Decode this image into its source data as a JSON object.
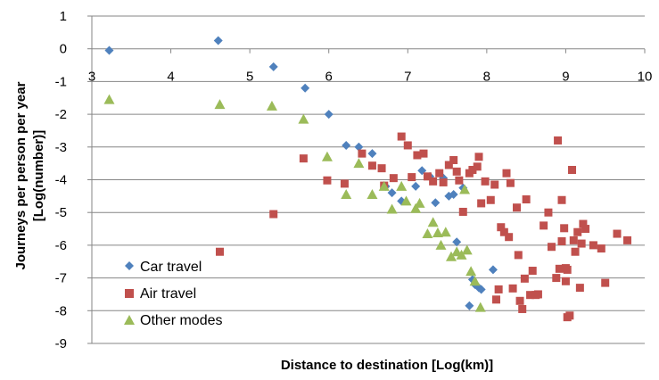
{
  "chart_data": {
    "type": "scatter",
    "title": "",
    "xlabel": "Distance to destination [Log(km)]",
    "ylabel_line1": "Journeys per person per year",
    "ylabel_line2": "[Log(number)]",
    "xlim": [
      3,
      10
    ],
    "ylim": [
      -9,
      1
    ],
    "x_ticks": [
      3,
      4,
      5,
      6,
      7,
      8,
      9,
      10
    ],
    "y_ticks": [
      1,
      0,
      -1,
      -2,
      -3,
      -4,
      -5,
      -6,
      -7,
      -8,
      -9
    ],
    "x_tick_labels": [
      "3",
      "4",
      "5",
      "6",
      "7",
      "8",
      "9",
      "10"
    ],
    "y_tick_labels": [
      "1",
      "0",
      "-1",
      "-2",
      "-3",
      "-4",
      "-5",
      "-6",
      "-7",
      "-8",
      "-9"
    ],
    "grid": "horizontal",
    "legend_position": "bottom-left",
    "series": [
      {
        "name": "Car travel",
        "marker": "diamond",
        "color": "#4F81BD",
        "points": [
          [
            3.22,
            -0.05
          ],
          [
            4.6,
            0.25
          ],
          [
            5.3,
            -0.55
          ],
          [
            5.7,
            -1.2
          ],
          [
            6.0,
            -2.0
          ],
          [
            6.22,
            -2.95
          ],
          [
            6.38,
            -3.0
          ],
          [
            6.55,
            -3.2
          ],
          [
            6.72,
            -4.2
          ],
          [
            6.8,
            -4.4
          ],
          [
            6.92,
            -4.65
          ],
          [
            7.1,
            -4.2
          ],
          [
            7.18,
            -3.72
          ],
          [
            7.28,
            -3.9
          ],
          [
            7.35,
            -4.7
          ],
          [
            7.45,
            -3.95
          ],
          [
            7.52,
            -4.5
          ],
          [
            7.58,
            -4.45
          ],
          [
            7.62,
            -5.9
          ],
          [
            7.7,
            -4.25
          ],
          [
            7.78,
            -7.85
          ],
          [
            7.82,
            -7.05
          ],
          [
            7.85,
            -7.2
          ],
          [
            7.9,
            -7.3
          ],
          [
            7.93,
            -7.35
          ],
          [
            8.08,
            -6.75
          ]
        ]
      },
      {
        "name": "Air travel",
        "marker": "square",
        "color": "#C0504D",
        "points": [
          [
            4.62,
            -6.2
          ],
          [
            5.3,
            -5.05
          ],
          [
            5.68,
            -3.35
          ],
          [
            5.98,
            -4.02
          ],
          [
            6.2,
            -4.12
          ],
          [
            6.42,
            -3.2
          ],
          [
            6.55,
            -3.57
          ],
          [
            6.67,
            -3.65
          ],
          [
            6.7,
            -4.18
          ],
          [
            6.82,
            -3.95
          ],
          [
            6.92,
            -2.68
          ],
          [
            7.0,
            -2.95
          ],
          [
            7.05,
            -3.92
          ],
          [
            7.12,
            -3.25
          ],
          [
            7.2,
            -3.2
          ],
          [
            7.25,
            -3.9
          ],
          [
            7.32,
            -4.05
          ],
          [
            7.4,
            -3.8
          ],
          [
            7.45,
            -4.08
          ],
          [
            7.52,
            -3.55
          ],
          [
            7.58,
            -3.4
          ],
          [
            7.62,
            -3.75
          ],
          [
            7.65,
            -4.02
          ],
          [
            7.7,
            -4.98
          ],
          [
            7.78,
            -3.8
          ],
          [
            7.82,
            -3.7
          ],
          [
            7.88,
            -3.6
          ],
          [
            7.9,
            -3.3
          ],
          [
            7.93,
            -4.72
          ],
          [
            7.98,
            -4.05
          ],
          [
            8.05,
            -4.62
          ],
          [
            8.1,
            -4.15
          ],
          [
            8.12,
            -7.66
          ],
          [
            8.15,
            -7.35
          ],
          [
            8.18,
            -5.45
          ],
          [
            8.22,
            -5.6
          ],
          [
            8.25,
            -3.8
          ],
          [
            8.28,
            -5.75
          ],
          [
            8.3,
            -4.1
          ],
          [
            8.33,
            -7.32
          ],
          [
            8.38,
            -4.85
          ],
          [
            8.4,
            -6.3
          ],
          [
            8.42,
            -7.7
          ],
          [
            8.45,
            -7.95
          ],
          [
            8.48,
            -7.02
          ],
          [
            8.5,
            -4.6
          ],
          [
            8.55,
            -7.52
          ],
          [
            8.58,
            -6.78
          ],
          [
            8.62,
            -7.52
          ],
          [
            8.65,
            -7.5
          ],
          [
            8.72,
            -5.4
          ],
          [
            8.78,
            -5.0
          ],
          [
            8.82,
            -6.05
          ],
          [
            8.88,
            -7.0
          ],
          [
            8.9,
            -2.8
          ],
          [
            8.92,
            -6.72
          ],
          [
            8.95,
            -4.62
          ],
          [
            8.95,
            -5.88
          ],
          [
            8.98,
            -5.48
          ],
          [
            9.0,
            -6.7
          ],
          [
            9.0,
            -7.1
          ],
          [
            9.02,
            -6.75
          ],
          [
            9.02,
            -8.2
          ],
          [
            9.05,
            -8.15
          ],
          [
            9.08,
            -3.7
          ],
          [
            9.1,
            -5.85
          ],
          [
            9.12,
            -6.2
          ],
          [
            9.15,
            -5.6
          ],
          [
            9.18,
            -7.3
          ],
          [
            9.2,
            -5.95
          ],
          [
            9.22,
            -5.35
          ],
          [
            9.25,
            -5.5
          ],
          [
            9.35,
            -6.0
          ],
          [
            9.45,
            -6.1
          ],
          [
            9.5,
            -7.15
          ],
          [
            9.65,
            -5.65
          ],
          [
            9.78,
            -5.85
          ]
        ]
      },
      {
        "name": "Other modes",
        "marker": "triangle",
        "color": "#9BBB59",
        "points": [
          [
            3.22,
            -1.55
          ],
          [
            4.62,
            -1.7
          ],
          [
            5.28,
            -1.75
          ],
          [
            5.68,
            -2.15
          ],
          [
            5.98,
            -3.3
          ],
          [
            6.22,
            -4.45
          ],
          [
            6.38,
            -3.5
          ],
          [
            6.55,
            -4.45
          ],
          [
            6.7,
            -4.2
          ],
          [
            6.8,
            -4.9
          ],
          [
            6.92,
            -4.2
          ],
          [
            6.98,
            -4.65
          ],
          [
            7.1,
            -4.88
          ],
          [
            7.15,
            -4.72
          ],
          [
            7.25,
            -5.65
          ],
          [
            7.32,
            -5.3
          ],
          [
            7.38,
            -5.62
          ],
          [
            7.42,
            -6.0
          ],
          [
            7.48,
            -5.6
          ],
          [
            7.55,
            -6.35
          ],
          [
            7.62,
            -6.2
          ],
          [
            7.68,
            -6.3
          ],
          [
            7.72,
            -4.3
          ],
          [
            7.75,
            -6.15
          ],
          [
            7.8,
            -6.8
          ],
          [
            7.85,
            -7.1
          ],
          [
            7.92,
            -7.9
          ]
        ]
      }
    ]
  }
}
